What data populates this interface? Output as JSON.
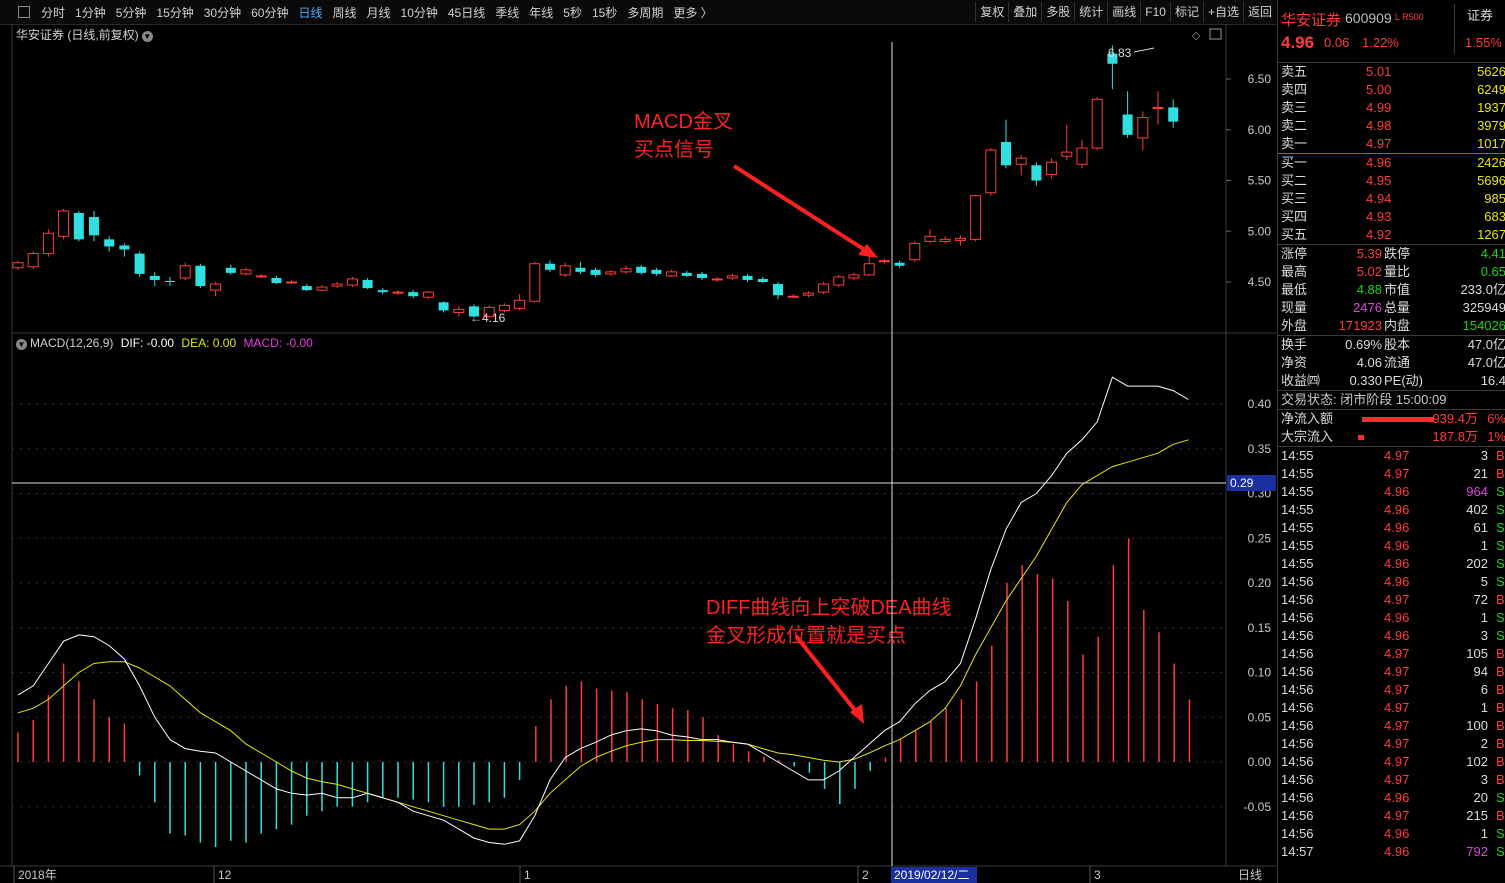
{
  "toolbar": {
    "periods": [
      "分时",
      "1分钟",
      "5分钟",
      "15分钟",
      "30分钟",
      "60分钟",
      "日线",
      "周线",
      "月线",
      "10分钟",
      "45日线",
      "季线",
      "年线",
      "5秒",
      "15秒",
      "多周期",
      "更多 〉"
    ],
    "active_period": "日线",
    "actions": [
      "复权",
      "叠加",
      "多股",
      "统计",
      "画线",
      "F10",
      "标记",
      "+自选",
      "返回"
    ]
  },
  "chart": {
    "title": "华安证券 (日线,前复权)",
    "price_axis": [
      "6.50",
      "6.00",
      "5.50",
      "5.00",
      "4.50"
    ],
    "high_label": "6.83",
    "low_label": "4.16",
    "annotation1": [
      "MACD金叉",
      "买点信号"
    ],
    "annotation2": [
      "DIFF曲线向上突破DEA曲线",
      "金叉形成位置就是买点"
    ]
  },
  "macd": {
    "label": "MACD(12,26,9)",
    "dif_label": "DIF: -0.00",
    "dea_label": "DEA: 0.00",
    "macd_label": "MACD: -0.00",
    "axis": [
      "0.40",
      "0.35",
      "0.30",
      "0.25",
      "0.20",
      "0.15",
      "0.10",
      "0.05",
      "0.00",
      "-0.05"
    ],
    "cursor_value": "0.29"
  },
  "date_axis": {
    "labels": [
      "2018年",
      "12",
      "1",
      "2",
      "3"
    ],
    "cursor_date": "2019/02/12/二",
    "period_btn": "日线"
  },
  "quote": {
    "name": "华安证券",
    "code": "600909",
    "flags": "L R500",
    "sector_tag": "证券",
    "price": "4.96",
    "change": "0.06",
    "change_pct": "1.22%",
    "sector_pct": "1.55%",
    "asks": [
      {
        "label": "卖五",
        "price": "5.01",
        "vol": "5626"
      },
      {
        "label": "卖四",
        "price": "5.00",
        "vol": "6249"
      },
      {
        "label": "卖三",
        "price": "4.99",
        "vol": "1937"
      },
      {
        "label": "卖二",
        "price": "4.98",
        "vol": "3979"
      },
      {
        "label": "卖一",
        "price": "4.97",
        "vol": "1017"
      }
    ],
    "bids": [
      {
        "label": "买一",
        "price": "4.96",
        "vol": "2426"
      },
      {
        "label": "买二",
        "price": "4.95",
        "vol": "5696"
      },
      {
        "label": "买三",
        "price": "4.94",
        "vol": "985"
      },
      {
        "label": "买四",
        "price": "4.93",
        "vol": "683"
      },
      {
        "label": "买五",
        "price": "4.92",
        "vol": "1267"
      }
    ],
    "stats": [
      {
        "l1": "涨停",
        "v1": "5.39",
        "c1": "red",
        "l2": "跌停",
        "v2": "4.41",
        "c2": "green"
      },
      {
        "l1": "最高",
        "v1": "5.02",
        "c1": "red",
        "l2": "量比",
        "v2": "0.65",
        "c2": "green"
      },
      {
        "l1": "最低",
        "v1": "4.88",
        "c1": "green",
        "l2": "市值",
        "v2": "233.0亿",
        "c2": "wht"
      },
      {
        "l1": "现量",
        "v1": "2476",
        "c1": "mag",
        "l2": "总量",
        "v2": "325949",
        "c2": "wht"
      },
      {
        "l1": "外盘",
        "v1": "171923",
        "c1": "red",
        "l2": "内盘",
        "v2": "154026",
        "c2": "green"
      }
    ],
    "stats2": [
      {
        "l1": "换手",
        "v1": "0.69%",
        "l2": "股本",
        "v2": "47.0亿"
      },
      {
        "l1": "净资",
        "v1": "4.06",
        "l2": "流通",
        "v2": "47.0亿"
      },
      {
        "l1": "收益㈣",
        "v1": "0.330",
        "l2": "PE(动)",
        "v2": "16.4"
      }
    ],
    "trade_status": "交易状态: 闭市阶段 15:00:09",
    "flows": [
      {
        "label": "净流入额",
        "value": "939.4万",
        "pct": "6%"
      },
      {
        "label": "大宗流入",
        "value": "187.8万",
        "pct": "1%"
      }
    ]
  },
  "ticks": [
    {
      "t": "14:55",
      "p": "4.97",
      "v": "3",
      "c": "wht",
      "s": "B"
    },
    {
      "t": "14:55",
      "p": "4.97",
      "v": "21",
      "c": "wht",
      "s": "B"
    },
    {
      "t": "14:55",
      "p": "4.96",
      "v": "964",
      "c": "mag",
      "s": "S"
    },
    {
      "t": "14:55",
      "p": "4.96",
      "v": "402",
      "c": "wht",
      "s": "S"
    },
    {
      "t": "14:55",
      "p": "4.96",
      "v": "61",
      "c": "wht",
      "s": "S"
    },
    {
      "t": "14:55",
      "p": "4.96",
      "v": "1",
      "c": "wht",
      "s": "S"
    },
    {
      "t": "14:55",
      "p": "4.96",
      "v": "202",
      "c": "wht",
      "s": "S"
    },
    {
      "t": "14:56",
      "p": "4.96",
      "v": "5",
      "c": "wht",
      "s": "S"
    },
    {
      "t": "14:56",
      "p": "4.97",
      "v": "72",
      "c": "wht",
      "s": "B"
    },
    {
      "t": "14:56",
      "p": "4.96",
      "v": "1",
      "c": "wht",
      "s": "S"
    },
    {
      "t": "14:56",
      "p": "4.96",
      "v": "3",
      "c": "wht",
      "s": "S"
    },
    {
      "t": "14:56",
      "p": "4.97",
      "v": "105",
      "c": "wht",
      "s": "B"
    },
    {
      "t": "14:56",
      "p": "4.97",
      "v": "94",
      "c": "wht",
      "s": "B"
    },
    {
      "t": "14:56",
      "p": "4.97",
      "v": "6",
      "c": "wht",
      "s": "B"
    },
    {
      "t": "14:56",
      "p": "4.97",
      "v": "1",
      "c": "wht",
      "s": "B"
    },
    {
      "t": "14:56",
      "p": "4.97",
      "v": "100",
      "c": "wht",
      "s": "B"
    },
    {
      "t": "14:56",
      "p": "4.97",
      "v": "2",
      "c": "wht",
      "s": "B"
    },
    {
      "t": "14:56",
      "p": "4.97",
      "v": "102",
      "c": "wht",
      "s": "B"
    },
    {
      "t": "14:56",
      "p": "4.97",
      "v": "3",
      "c": "wht",
      "s": "B"
    },
    {
      "t": "14:56",
      "p": "4.96",
      "v": "20",
      "c": "wht",
      "s": "S"
    },
    {
      "t": "14:56",
      "p": "4.97",
      "v": "215",
      "c": "wht",
      "s": "B"
    },
    {
      "t": "14:56",
      "p": "4.96",
      "v": "1",
      "c": "wht",
      "s": "S"
    },
    {
      "t": "14:57",
      "p": "4.96",
      "v": "792",
      "c": "mag",
      "s": "S"
    }
  ],
  "colors": {
    "up": "#ff3b3b",
    "down": "#30e0e0",
    "dif": "#ffffff",
    "dea": "#e6e600"
  }
}
